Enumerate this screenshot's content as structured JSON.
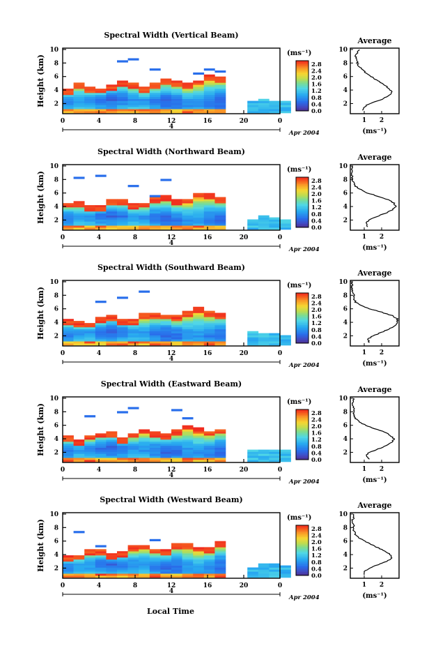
{
  "figure": {
    "xlabel": "Local Time",
    "date_label": "Apr 2004",
    "day_label": "4",
    "colorbar_unit": "(ms⁻¹)",
    "average_title": "Average",
    "average_xlabel": "(ms⁻¹)"
  },
  "chart_data": [
    {
      "type": "heatmap",
      "title": "Spectral Width (Vertical Beam)",
      "ylabel": "Height (km)",
      "x_ticks": [
        "0",
        "4",
        "8",
        "12",
        "16",
        "20",
        "0"
      ],
      "y_ticks": [
        "2",
        "4",
        "6",
        "8",
        "10"
      ],
      "xlim": [
        0,
        24
      ],
      "ylim": [
        0.5,
        10.2
      ],
      "colorbar_ticks": [
        "0.0",
        "0.4",
        "0.8",
        "1.2",
        "1.6",
        "2.0",
        "2.4",
        "2.8"
      ],
      "clim": [
        0.0,
        3.0
      ],
      "data_end_hour": 17.5,
      "data_resume_hour": 20.2,
      "profile_x_ticks": [
        "1",
        "2"
      ],
      "profile_y_ticks": [
        "2",
        "4",
        "6",
        "8",
        "10"
      ],
      "profile": {
        "height_km": [
          1,
          1.5,
          2,
          2.5,
          3,
          3.5,
          4,
          4.5,
          5,
          5.5,
          6,
          6.5,
          7,
          7.5,
          8,
          8.5,
          9,
          9.5,
          10
        ],
        "width_ms": [
          0.9,
          1.0,
          1.3,
          1.9,
          2.3,
          2.6,
          2.5,
          2.3,
          2.0,
          1.7,
          1.4,
          1.1,
          0.9,
          0.7,
          0.6,
          0.6,
          0.5,
          0.6,
          0.7
        ]
      }
    },
    {
      "type": "heatmap",
      "title": "Spectral Width (Northward Beam)",
      "ylabel": "Height (km)",
      "x_ticks": [
        "0",
        "4",
        "8",
        "12",
        "16",
        "20",
        "0"
      ],
      "y_ticks": [
        "2",
        "4",
        "6",
        "8",
        "10"
      ],
      "xlim": [
        0,
        24
      ],
      "ylim": [
        0.5,
        10.2
      ],
      "colorbar_ticks": [
        "0.0",
        "0.4",
        "0.8",
        "1.2",
        "1.6",
        "2.0",
        "2.4",
        "2.8"
      ],
      "clim": [
        0.0,
        3.0
      ],
      "data_end_hour": 17.8,
      "data_resume_hour": 20.2,
      "profile_x_ticks": [
        "1",
        "2"
      ],
      "profile_y_ticks": [
        "2",
        "4",
        "6",
        "8",
        "10"
      ],
      "profile": {
        "height_km": [
          1,
          1.5,
          2,
          2.5,
          3,
          3.5,
          4,
          4.5,
          5,
          5.5,
          6,
          6.5,
          7,
          7.5,
          8,
          8.5,
          9,
          9.5,
          10
        ],
        "width_ms": [
          1.2,
          1.1,
          1.3,
          1.7,
          2.2,
          2.6,
          2.8,
          2.7,
          2.4,
          1.8,
          1.2,
          0.8,
          0.5,
          0.4,
          0.3,
          0.3,
          0.3,
          0.3,
          0.3
        ]
      }
    },
    {
      "type": "heatmap",
      "title": "Spectral Width (Southward Beam)",
      "ylabel": "Height (km)",
      "x_ticks": [
        "0",
        "4",
        "8",
        "12",
        "16",
        "20",
        "0"
      ],
      "y_ticks": [
        "2",
        "4",
        "6",
        "8",
        "10"
      ],
      "xlim": [
        0,
        24
      ],
      "ylim": [
        0.5,
        10.2
      ],
      "colorbar_ticks": [
        "0.0",
        "0.4",
        "0.8",
        "1.2",
        "1.6",
        "2.0",
        "2.4",
        "2.8"
      ],
      "clim": [
        0.0,
        3.0
      ],
      "data_end_hour": 17.5,
      "data_resume_hour": 20.2,
      "profile_x_ticks": [
        "1",
        "2"
      ],
      "profile_y_ticks": [
        "2",
        "4",
        "6",
        "8",
        "10"
      ],
      "profile": {
        "height_km": [
          1,
          1.5,
          2,
          2.5,
          3,
          3.5,
          4,
          4.5,
          5,
          5.5,
          6,
          6.5,
          7,
          7.5,
          8,
          8.5,
          9,
          9.5,
          10
        ],
        "width_ms": [
          1.3,
          1.2,
          1.5,
          2.0,
          2.4,
          2.8,
          2.9,
          2.9,
          2.6,
          2.0,
          1.3,
          0.8,
          0.5,
          0.4,
          0.4,
          0.3,
          0.3,
          0.3,
          0.3
        ]
      }
    },
    {
      "type": "heatmap",
      "title": "Spectral Width (Eastward Beam)",
      "ylabel": "Height (km)",
      "x_ticks": [
        "0",
        "4",
        "8",
        "12",
        "16",
        "20",
        "0"
      ],
      "y_ticks": [
        "2",
        "4",
        "6",
        "8",
        "10"
      ],
      "xlim": [
        0,
        24
      ],
      "ylim": [
        0.5,
        10.2
      ],
      "colorbar_ticks": [
        "0.0",
        "0.4",
        "0.8",
        "1.2",
        "1.6",
        "2.0",
        "2.4",
        "2.8"
      ],
      "clim": [
        0.0,
        3.0
      ],
      "data_end_hour": 17.5,
      "data_resume_hour": 20.2,
      "profile_x_ticks": [
        "1",
        "2"
      ],
      "profile_y_ticks": [
        "2",
        "4",
        "6",
        "8",
        "10"
      ],
      "profile": {
        "height_km": [
          1,
          1.5,
          2,
          2.5,
          3,
          3.5,
          4,
          4.5,
          5,
          5.5,
          6,
          6.5,
          7,
          7.5,
          8,
          8.5,
          9,
          9.5,
          10
        ],
        "width_ms": [
          1.3,
          1.1,
          1.3,
          1.8,
          2.3,
          2.6,
          2.7,
          2.5,
          2.2,
          1.6,
          1.1,
          0.7,
          0.5,
          0.4,
          0.4,
          0.4,
          0.3,
          0.4,
          0.4
        ]
      }
    },
    {
      "type": "heatmap",
      "title": "Spectral Width (Westward Beam)",
      "ylabel": "Height (km)",
      "x_ticks": [
        "0",
        "4",
        "8",
        "12",
        "16",
        "20",
        "0"
      ],
      "y_ticks": [
        "2",
        "4",
        "6",
        "8",
        "10"
      ],
      "xlim": [
        0,
        24
      ],
      "ylim": [
        0.5,
        10.2
      ],
      "colorbar_ticks": [
        "0.0",
        "0.4",
        "0.8",
        "1.2",
        "1.6",
        "2.0",
        "2.4",
        "2.8"
      ],
      "clim": [
        0.0,
        3.0
      ],
      "data_end_hour": 17.5,
      "data_resume_hour": 20.2,
      "profile_x_ticks": [
        "1",
        "2"
      ],
      "profile_y_ticks": [
        "2",
        "4",
        "6",
        "8",
        "10"
      ],
      "profile": {
        "height_km": [
          1,
          1.5,
          2,
          2.5,
          3,
          3.5,
          4,
          4.5,
          5,
          5.5,
          6,
          6.5,
          7,
          7.5,
          8,
          8.5,
          9,
          9.5,
          10
        ],
        "width_ms": [
          1.0,
          1.0,
          1.3,
          1.8,
          2.3,
          2.6,
          2.5,
          2.2,
          1.8,
          1.4,
          1.0,
          0.7,
          0.5,
          0.4,
          0.4,
          0.4,
          0.3,
          0.4,
          0.4
        ]
      }
    }
  ]
}
